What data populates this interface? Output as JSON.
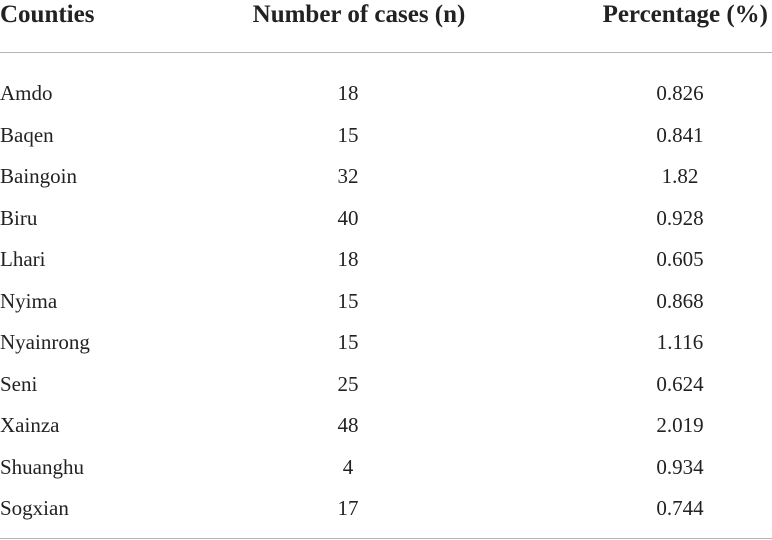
{
  "table": {
    "headers": {
      "county": "Counties",
      "cases": "Number of cases (n)",
      "percentage": "Percentage (%)"
    },
    "rows": [
      {
        "county": "Amdo",
        "cases": "18",
        "percentage": "0.826"
      },
      {
        "county": "Baqen",
        "cases": "15",
        "percentage": "0.841"
      },
      {
        "county": "Baingoin",
        "cases": "32",
        "percentage": "1.82"
      },
      {
        "county": "Biru",
        "cases": "40",
        "percentage": "0.928"
      },
      {
        "county": "Lhari",
        "cases": "18",
        "percentage": "0.605"
      },
      {
        "county": "Nyima",
        "cases": "15",
        "percentage": "0.868"
      },
      {
        "county": "Nyainrong",
        "cases": "15",
        "percentage": "1.116"
      },
      {
        "county": "Seni",
        "cases": "25",
        "percentage": "0.624"
      },
      {
        "county": "Xainza",
        "cases": "48",
        "percentage": "2.019"
      },
      {
        "county": "Shuanghu",
        "cases": "4",
        "percentage": "0.934"
      },
      {
        "county": "Sogxian",
        "cases": "17",
        "percentage": "0.744"
      }
    ]
  }
}
